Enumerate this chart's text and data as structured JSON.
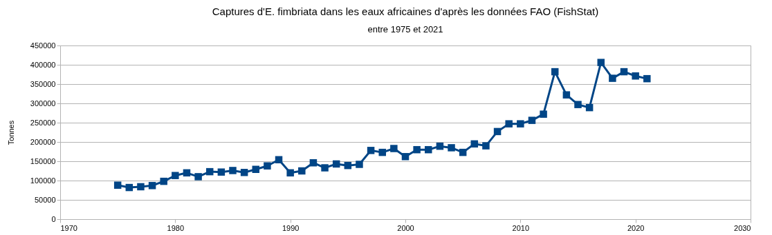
{
  "chart_data": {
    "type": "line",
    "title": "Captures d'E. fimbriata dans les eaux africaines d'après les données FAO (FishStat)",
    "subtitle": "entre 1975 et 2021",
    "ylabel": "Tonnes",
    "x": [
      1975,
      1976,
      1977,
      1978,
      1979,
      1980,
      1981,
      1982,
      1983,
      1984,
      1985,
      1986,
      1987,
      1988,
      1989,
      1990,
      1991,
      1992,
      1993,
      1994,
      1995,
      1996,
      1997,
      1998,
      1999,
      2000,
      2001,
      2002,
      2003,
      2004,
      2005,
      2006,
      2007,
      2008,
      2009,
      2010,
      2011,
      2012,
      2013,
      2014,
      2015,
      2016,
      2017,
      2018,
      2019,
      2020,
      2021
    ],
    "series": [
      {
        "color": "#004586",
        "values": [
          88000,
          82000,
          84000,
          87000,
          98000,
          113000,
          120000,
          110000,
          123000,
          122000,
          126000,
          121000,
          129000,
          138000,
          154000,
          120000,
          125000,
          146000,
          133000,
          143000,
          139000,
          142000,
          178000,
          173000,
          183000,
          162000,
          180000,
          180000,
          189000,
          185000,
          173000,
          195000,
          190000,
          227000,
          247000,
          247000,
          256000,
          272000,
          382000,
          322000,
          297000,
          289000,
          406000,
          365000,
          382000,
          371000,
          364000
        ]
      }
    ],
    "xlim": [
      1970,
      2030
    ],
    "xticks": [
      1970,
      1980,
      1990,
      2000,
      2010,
      2020,
      2030
    ],
    "ylim": [
      0,
      450000
    ],
    "yticks": [
      0,
      50000,
      100000,
      150000,
      200000,
      250000,
      300000,
      350000,
      400000,
      450000
    ],
    "grid": "y",
    "marker": "square",
    "line_style": "solid"
  }
}
